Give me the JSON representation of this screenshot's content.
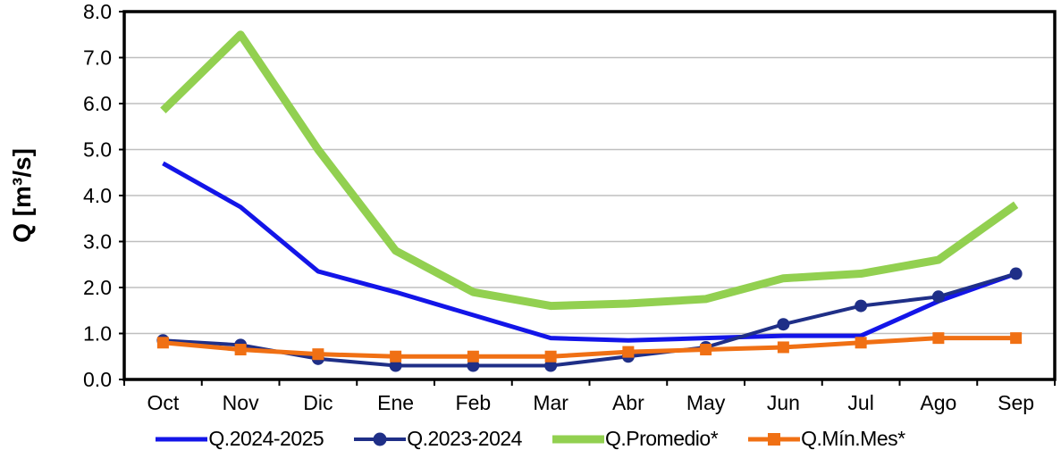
{
  "figure": {
    "background": "#FFFFFF",
    "axis_color": "#000000",
    "grid_color": "#BFBFBF"
  },
  "chart_data": {
    "type": "line",
    "title": "",
    "xlabel": "",
    "ylabel": "Q [m³/s]",
    "ylim": [
      0,
      8
    ],
    "ytick_step": 1.0,
    "ytick_labels": [
      "0.0",
      "1.0",
      "2.0",
      "3.0",
      "4.0",
      "5.0",
      "6.0",
      "7.0",
      "8.0"
    ],
    "grid": "horizontal",
    "legend_position": "bottom",
    "categories": [
      "Oct",
      "Nov",
      "Dic",
      "Ene",
      "Feb",
      "Mar",
      "Abr",
      "May",
      "Jun",
      "Jul",
      "Ago",
      "Sep"
    ],
    "series": [
      {
        "name": "Q.2024-2025",
        "color": "#1315E8",
        "marker": "none",
        "line_width": 5,
        "values": [
          4.7,
          3.75,
          2.35,
          1.9,
          1.4,
          0.9,
          0.85,
          0.9,
          0.95,
          0.95,
          1.7,
          2.3
        ]
      },
      {
        "name": "Q.2023-2024",
        "color": "#1F2F87",
        "marker": "circle",
        "line_width": 4,
        "values": [
          0.85,
          0.75,
          0.45,
          0.3,
          0.3,
          0.3,
          0.5,
          0.7,
          1.2,
          1.6,
          1.8,
          2.3
        ]
      },
      {
        "name": "Q.Promedio*",
        "color": "#92D050",
        "marker": "none",
        "line_width": 9,
        "values": [
          5.85,
          7.5,
          5.0,
          2.8,
          1.9,
          1.6,
          1.65,
          1.75,
          2.2,
          2.3,
          2.6,
          3.8
        ]
      },
      {
        "name": "Q.Mín.Mes*",
        "color": "#F07014",
        "marker": "square",
        "line_width": 5,
        "values": [
          0.8,
          0.65,
          0.55,
          0.5,
          0.5,
          0.5,
          0.6,
          0.65,
          0.7,
          0.8,
          0.9,
          0.9
        ]
      }
    ]
  }
}
